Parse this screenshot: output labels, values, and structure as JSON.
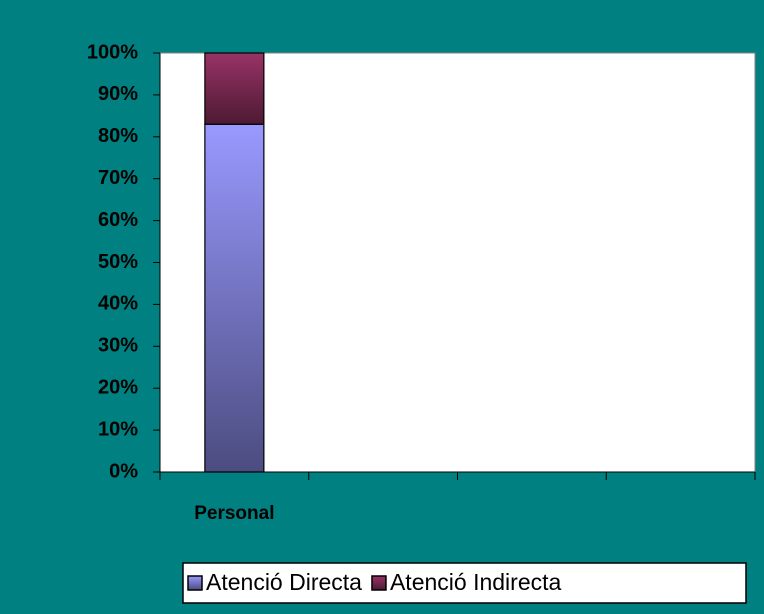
{
  "chart_data": {
    "type": "stacked_bar",
    "categories": [
      "Personal",
      null,
      null,
      null
    ],
    "series": [
      {
        "name": "Atenció Directa",
        "color": "#9999ff",
        "values": [
          83,
          null,
          null,
          null
        ]
      },
      {
        "name": "Atenció Indirecta",
        "color": "#993366",
        "values": [
          17,
          null,
          null,
          null
        ]
      }
    ],
    "ylim": [
      0,
      100
    ],
    "yticks": [
      {
        "value": 0,
        "label": "0%"
      },
      {
        "value": 10,
        "label": "10%"
      },
      {
        "value": 20,
        "label": "20%"
      },
      {
        "value": 30,
        "label": "30%"
      },
      {
        "value": 40,
        "label": "40%"
      },
      {
        "value": 50,
        "label": "50%"
      },
      {
        "value": 60,
        "label": "60%"
      },
      {
        "value": 70,
        "label": "70%"
      },
      {
        "value": 80,
        "label": "80%"
      },
      {
        "value": 90,
        "label": "90%"
      },
      {
        "value": 100,
        "label": "100%"
      }
    ],
    "grid": false,
    "legend": "bottom"
  }
}
